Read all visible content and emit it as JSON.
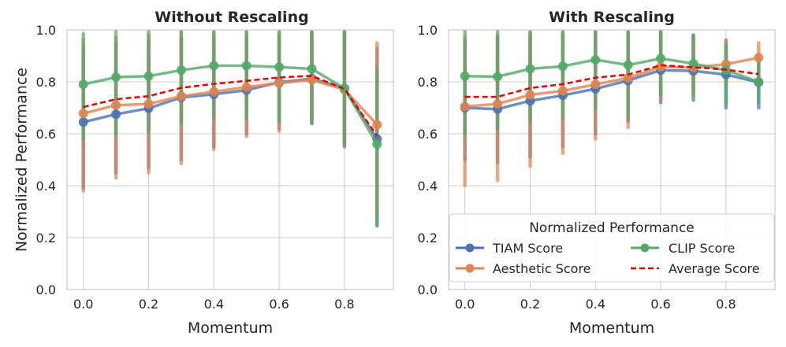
{
  "chart_data": [
    {
      "type": "line",
      "title": "Without Rescaling",
      "xlabel": "Momentum",
      "ylabel": "Normalized Performance",
      "x": [
        0.0,
        0.1,
        0.2,
        0.3,
        0.4,
        0.5,
        0.6,
        0.7,
        0.8,
        0.9
      ],
      "xlim": [
        -0.05,
        0.95
      ],
      "ylim": [
        0.0,
        1.0
      ],
      "xticks": [
        "0.0",
        "0.2",
        "0.4",
        "0.6",
        "0.8"
      ],
      "yticks": [
        "0.0",
        "0.2",
        "0.4",
        "0.6",
        "0.8",
        "1.0"
      ],
      "grid": true,
      "series": [
        {
          "name": "TIAM Score",
          "color": "#4c72b0",
          "style": "solid-marker",
          "values": [
            0.645,
            0.675,
            0.698,
            0.74,
            0.752,
            0.768,
            0.798,
            0.812,
            0.775,
            0.58
          ],
          "err_low": [
            0.39,
            0.45,
            0.47,
            0.5,
            0.55,
            0.6,
            0.62,
            0.64,
            0.55,
            0.245
          ],
          "err_high": [
            0.93,
            0.95,
            0.96,
            0.97,
            0.97,
            0.97,
            0.98,
            0.99,
            0.995,
            0.93
          ]
        },
        {
          "name": "Aesthetic Score",
          "color": "#dd8452",
          "style": "solid-marker",
          "values": [
            0.678,
            0.71,
            0.715,
            0.745,
            0.762,
            0.78,
            0.795,
            0.808,
            0.77,
            0.635
          ],
          "err_low": [
            0.38,
            0.43,
            0.45,
            0.485,
            0.54,
            0.59,
            0.61,
            0.65,
            0.56,
            0.29
          ],
          "err_high": [
            0.96,
            0.97,
            0.98,
            0.995,
            0.99,
            0.99,
            0.99,
            0.99,
            0.98,
            0.95
          ]
        },
        {
          "name": "CLIP Score",
          "color": "#55a868",
          "style": "solid-marker",
          "values": [
            0.79,
            0.818,
            0.822,
            0.845,
            0.862,
            0.862,
            0.857,
            0.85,
            0.775,
            0.56
          ],
          "err_low": [
            0.58,
            0.6,
            0.61,
            0.64,
            0.66,
            0.66,
            0.65,
            0.64,
            0.56,
            0.25
          ],
          "err_high": [
            0.985,
            0.995,
            0.995,
            0.995,
            0.995,
            0.995,
            0.995,
            0.995,
            0.99,
            0.85
          ]
        },
        {
          "name": "Average Score",
          "color": "#e00000",
          "style": "dashed",
          "values": [
            0.703,
            0.733,
            0.745,
            0.777,
            0.792,
            0.804,
            0.817,
            0.823,
            0.773,
            0.592
          ]
        }
      ]
    },
    {
      "type": "line",
      "title": "With Rescaling",
      "xlabel": "Momentum",
      "ylabel": "",
      "x": [
        0.0,
        0.1,
        0.2,
        0.3,
        0.4,
        0.5,
        0.6,
        0.7,
        0.8,
        0.9
      ],
      "xlim": [
        -0.05,
        0.95
      ],
      "ylim": [
        0.0,
        1.0
      ],
      "xticks": [
        "0.0",
        "0.2",
        "0.4",
        "0.6",
        "0.8"
      ],
      "yticks": [
        "0.0",
        "0.2",
        "0.4",
        "0.6",
        "0.8",
        "1.0"
      ],
      "grid": true,
      "legend": {
        "title": "Normalized Performance",
        "placement": "lower-right"
      },
      "series": [
        {
          "name": "TIAM Score",
          "color": "#4c72b0",
          "style": "solid-marker",
          "values": [
            0.7,
            0.695,
            0.727,
            0.748,
            0.773,
            0.805,
            0.845,
            0.842,
            0.828,
            0.798
          ],
          "err_low": [
            0.5,
            0.49,
            0.51,
            0.55,
            0.6,
            0.65,
            0.72,
            0.73,
            0.7,
            0.7
          ],
          "err_high": [
            0.96,
            0.97,
            0.98,
            0.98,
            0.99,
            0.99,
            0.995,
            0.98,
            0.96,
            0.9
          ]
        },
        {
          "name": "Aesthetic Score",
          "color": "#dd8452",
          "style": "solid-marker",
          "values": [
            0.705,
            0.715,
            0.75,
            0.765,
            0.79,
            0.815,
            0.858,
            0.855,
            0.868,
            0.893
          ],
          "err_low": [
            0.4,
            0.42,
            0.475,
            0.525,
            0.58,
            0.625,
            0.73,
            0.76,
            0.79,
            0.83
          ],
          "err_high": [
            0.97,
            0.98,
            0.99,
            0.99,
            0.99,
            0.99,
            0.99,
            0.97,
            0.96,
            0.95
          ]
        },
        {
          "name": "CLIP Score",
          "color": "#55a868",
          "style": "solid-marker",
          "values": [
            0.822,
            0.82,
            0.85,
            0.86,
            0.885,
            0.865,
            0.89,
            0.87,
            0.845,
            0.8
          ],
          "err_low": [
            0.6,
            0.62,
            0.65,
            0.66,
            0.7,
            0.66,
            0.75,
            0.75,
            0.72,
            0.72
          ],
          "err_high": [
            0.995,
            0.995,
            0.995,
            0.995,
            0.995,
            0.995,
            0.995,
            0.98,
            0.94,
            0.88
          ]
        },
        {
          "name": "Average Score",
          "color": "#e00000",
          "style": "dashed",
          "values": [
            0.742,
            0.742,
            0.776,
            0.791,
            0.816,
            0.828,
            0.864,
            0.856,
            0.847,
            0.83
          ]
        }
      ]
    }
  ]
}
